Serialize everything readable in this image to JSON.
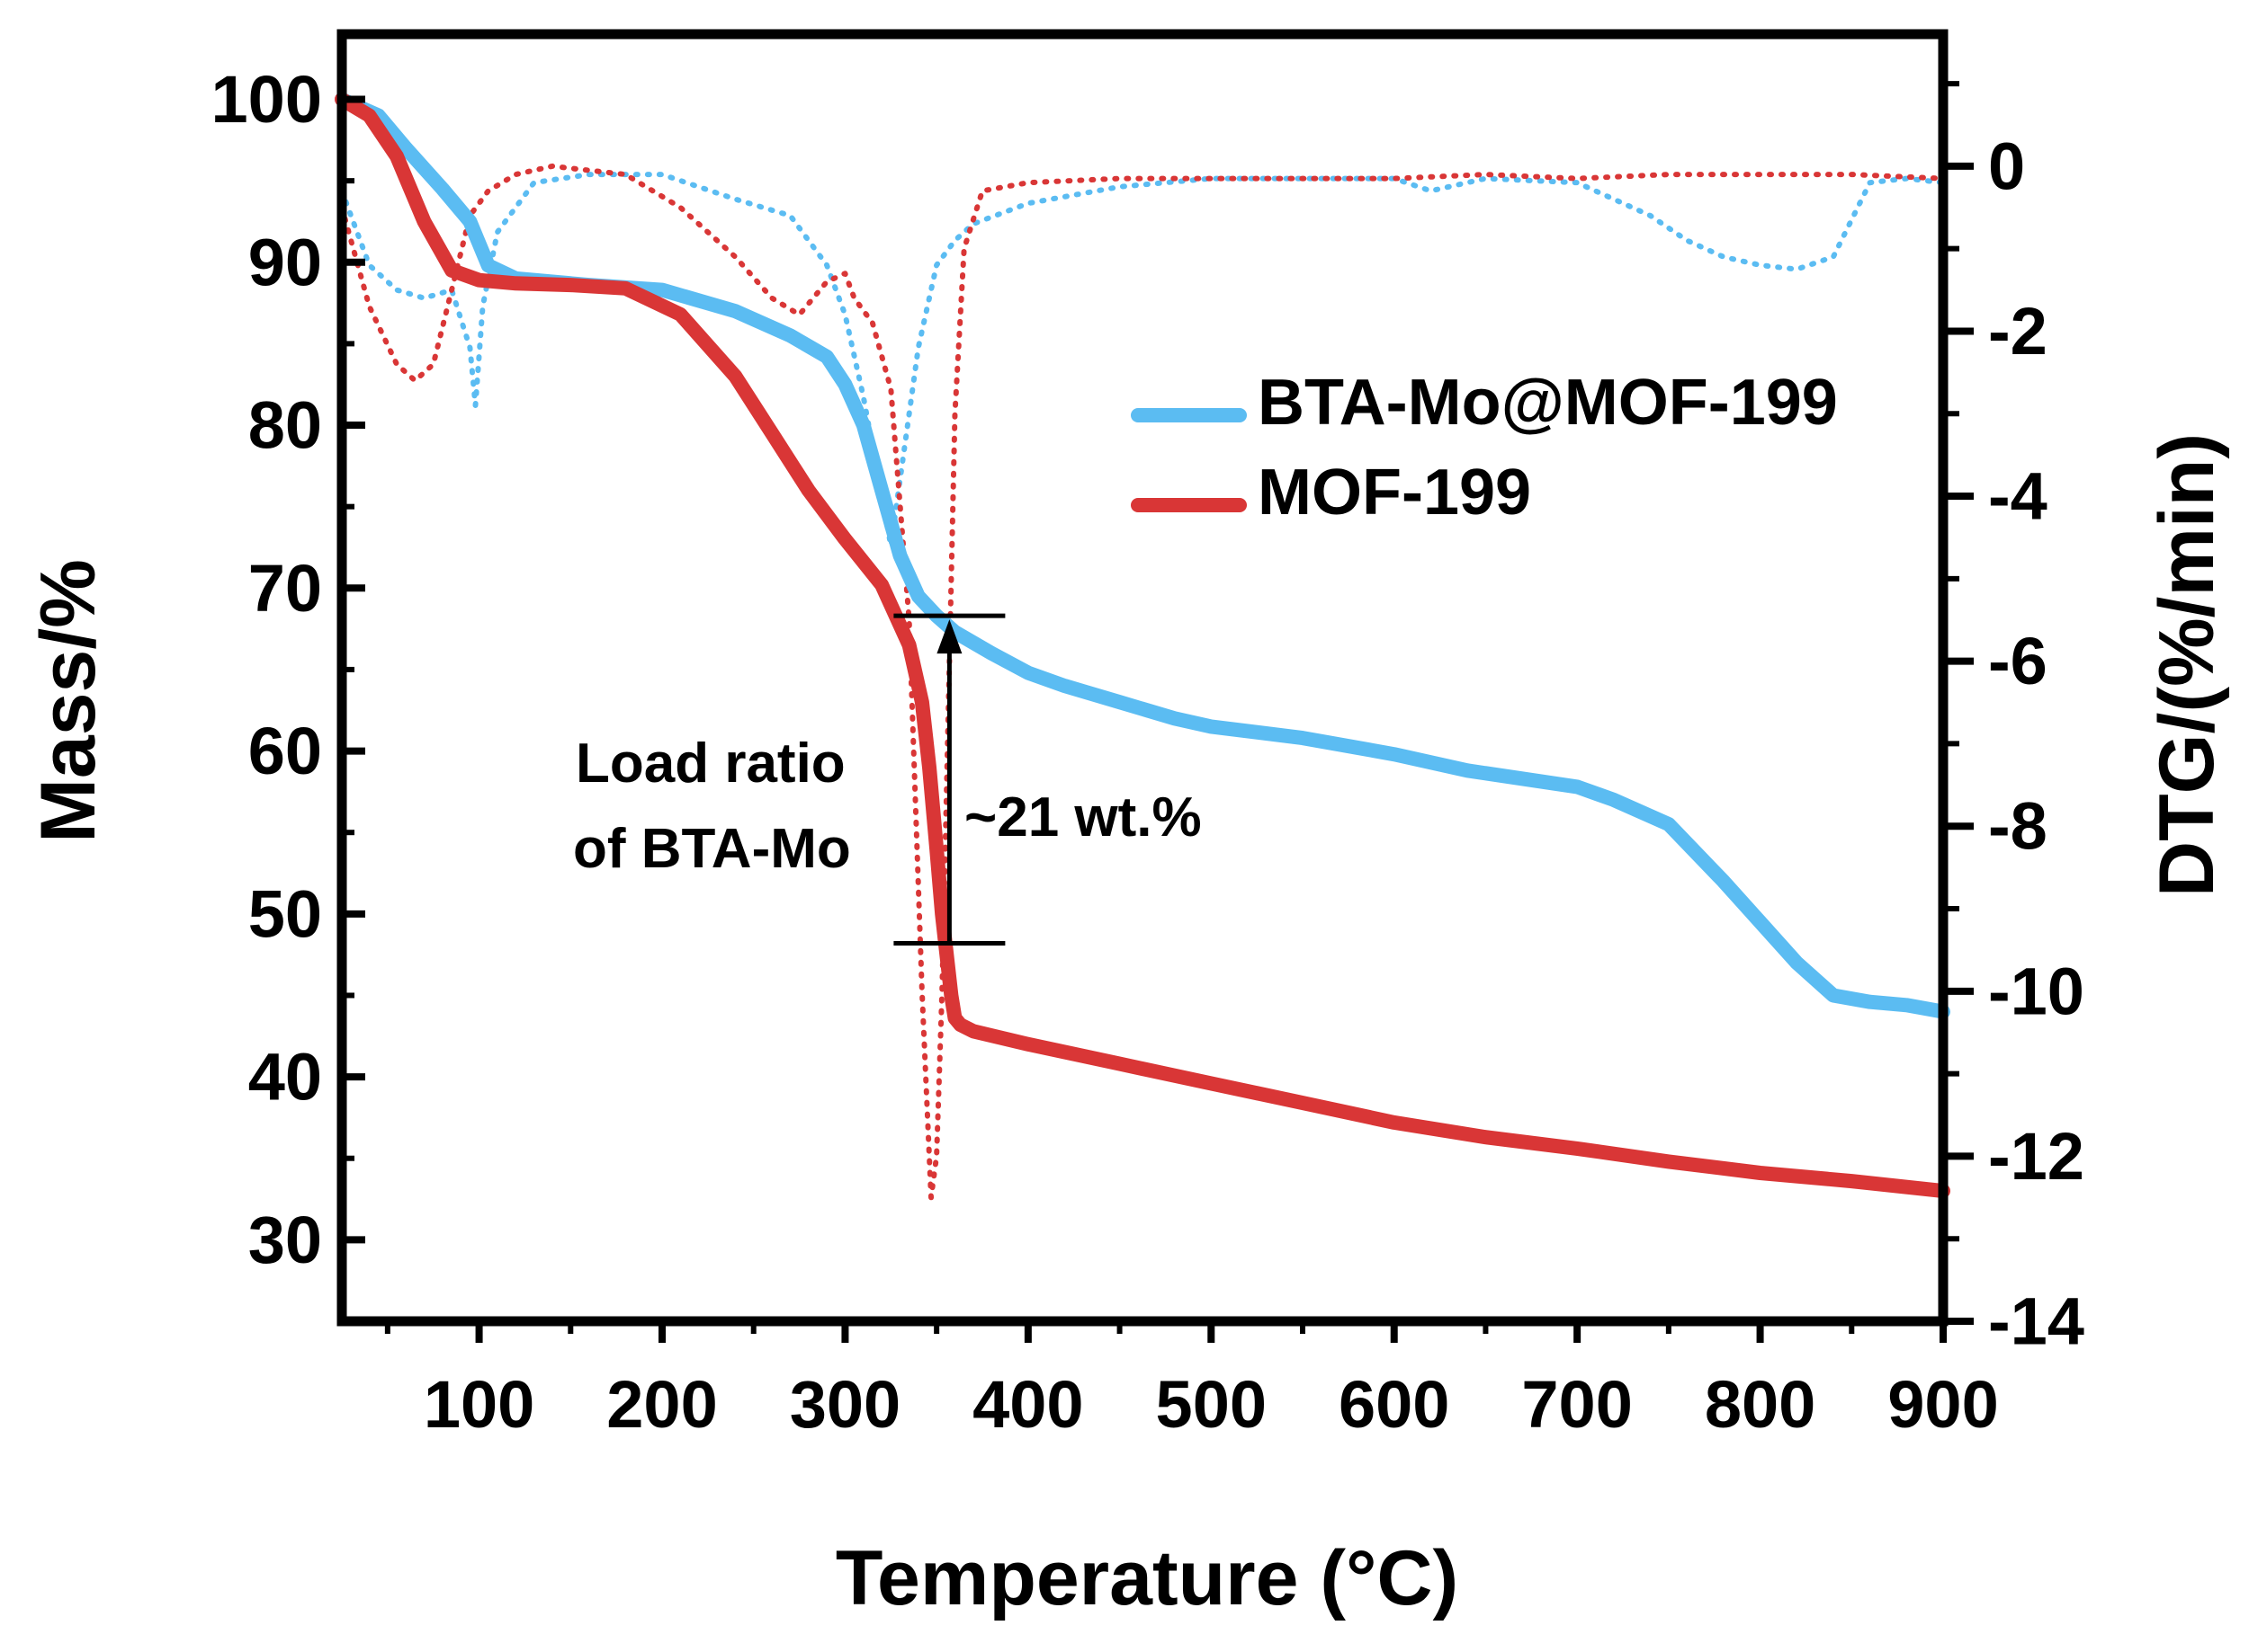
{
  "chart_data": {
    "type": "line",
    "xlabel": "Temperature (°C)",
    "ylabel": "Mass/%",
    "y2label": "DTG/(%/min)",
    "xlim": [
      25,
      900
    ],
    "ylim": [
      25,
      104
    ],
    "y2lim": [
      -14,
      1.6
    ],
    "xticks": [
      100,
      200,
      300,
      400,
      500,
      600,
      700,
      800,
      900
    ],
    "yticks": [
      30,
      40,
      50,
      60,
      70,
      80,
      90,
      100
    ],
    "y2ticks": [
      0,
      -2,
      -4,
      -6,
      -8,
      -10,
      -12,
      -14
    ],
    "grid": false,
    "legend_position": "top-right",
    "colors": {
      "bta": "#5bbcf2",
      "mof": "#d93636"
    },
    "series": [
      {
        "name": "BTA-Mo@MOF-199",
        "axis": "left",
        "style": "solid",
        "color_key": "bta",
        "x": [
          25,
          45,
          60,
          80,
          95,
          105,
          120,
          160,
          200,
          240,
          270,
          290,
          300,
          310,
          320,
          330,
          340,
          350,
          360,
          380,
          400,
          420,
          450,
          480,
          500,
          550,
          600,
          640,
          700,
          720,
          750,
          780,
          800,
          820,
          840,
          860,
          880,
          900
        ],
        "y": [
          100,
          99,
          97,
          94.5,
          92.5,
          89.8,
          89,
          88.6,
          88.3,
          87,
          85.5,
          84.2,
          82.5,
          80,
          76,
          72,
          69.5,
          68.3,
          67.3,
          66,
          64.8,
          64,
          63,
          62,
          61.5,
          60.8,
          59.8,
          58.8,
          57.8,
          57,
          55.5,
          52,
          49.5,
          47,
          45,
          44.6,
          44.4,
          44
        ]
      },
      {
        "name": "MOF-199",
        "axis": "left",
        "style": "solid",
        "color_key": "mof",
        "x": [
          25,
          40,
          55,
          70,
          85,
          100,
          120,
          150,
          180,
          210,
          240,
          260,
          280,
          300,
          320,
          335,
          342,
          346,
          350,
          353,
          356,
          358,
          360,
          363,
          370,
          400,
          450,
          500,
          550,
          600,
          650,
          700,
          750,
          800,
          850,
          900
        ],
        "y": [
          100,
          99,
          96.5,
          92.5,
          89.5,
          88.9,
          88.7,
          88.6,
          88.4,
          86.8,
          83,
          79.5,
          76,
          73,
          70.2,
          66.5,
          63,
          59,
          54,
          50,
          47,
          45,
          43.6,
          43.2,
          42.8,
          42,
          40.8,
          39.6,
          38.4,
          37.2,
          36.3,
          35.6,
          34.8,
          34.1,
          33.6,
          33
        ]
      },
      {
        "name": "BTA-Mo@MOF-199 DTG",
        "axis": "right",
        "style": "dotted",
        "color_key": "bta",
        "x": [
          25,
          40,
          55,
          70,
          85,
          95,
          98,
          102,
          110,
          130,
          160,
          200,
          240,
          270,
          290,
          300,
          310,
          320,
          325,
          330,
          340,
          350,
          360,
          370,
          400,
          450,
          500,
          550,
          600,
          620,
          650,
          700,
          740,
          760,
          780,
          800,
          820,
          840,
          860,
          880,
          900
        ],
        "y": [
          -0.3,
          -1.2,
          -1.5,
          -1.6,
          -1.5,
          -2.2,
          -2.9,
          -1.7,
          -0.8,
          -0.2,
          -0.1,
          -0.1,
          -0.4,
          -0.6,
          -1.2,
          -1.8,
          -2.8,
          -4.0,
          -4.6,
          -3.8,
          -2.2,
          -1.2,
          -0.9,
          -0.7,
          -0.45,
          -0.25,
          -0.15,
          -0.15,
          -0.15,
          -0.3,
          -0.15,
          -0.2,
          -0.6,
          -0.9,
          -1.1,
          -1.2,
          -1.25,
          -1.1,
          -0.2,
          -0.15,
          -0.2
        ]
      },
      {
        "name": "MOF-199 DTG",
        "axis": "right",
        "style": "dotted",
        "color_key": "mof",
        "x": [
          25,
          40,
          55,
          65,
          75,
          85,
          95,
          105,
          120,
          140,
          180,
          210,
          240,
          260,
          275,
          290,
          300,
          305,
          315,
          325,
          335,
          342,
          347,
          350,
          353,
          357,
          360,
          365,
          375,
          400,
          450,
          500,
          550,
          600,
          650,
          700,
          750,
          800,
          850,
          900
        ],
        "y": [
          -0.5,
          -1.7,
          -2.4,
          -2.6,
          -2.4,
          -1.5,
          -0.6,
          -0.3,
          -0.1,
          0,
          -0.1,
          -0.5,
          -1.1,
          -1.6,
          -1.8,
          -1.4,
          -1.3,
          -1.6,
          -1.9,
          -2.7,
          -5.5,
          -10.0,
          -12.5,
          -12.0,
          -10.0,
          -6.0,
          -3.0,
          -1.0,
          -0.3,
          -0.2,
          -0.15,
          -0.15,
          -0.15,
          -0.15,
          -0.1,
          -0.15,
          -0.1,
          -0.1,
          -0.1,
          -0.15
        ]
      }
    ],
    "annotations": {
      "load_ratio_line1": "Load ratio",
      "load_ratio_line2": "of BTA-Mo",
      "value": "~21 wt.%",
      "bracket_x": 357,
      "bracket_top": 68.3,
      "bracket_bottom": 48.2
    }
  }
}
